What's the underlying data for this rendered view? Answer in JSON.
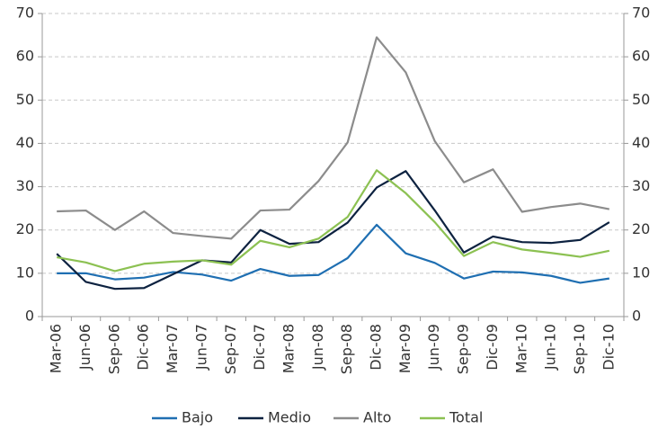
{
  "chart_data": {
    "type": "line",
    "categories": [
      "Mar-06",
      "Jun-06",
      "Sep-06",
      "Dic-06",
      "Mar-07",
      "Jun-07",
      "Sep-07",
      "Dic-07",
      "Mar-08",
      "Jun-08",
      "Sep-08",
      "Dic-08",
      "Mar-09",
      "Jun-09",
      "Sep-09",
      "Dic-09",
      "Mar-10",
      "Jun-10",
      "Sep-10",
      "Dic-10"
    ],
    "series": [
      {
        "name": "Bajo",
        "color": "#1f6fb2",
        "values": [
          10,
          10,
          8.6,
          9,
          10.3,
          9.7,
          8.3,
          11,
          9.4,
          9.6,
          13.5,
          21.2,
          14.6,
          12.4,
          8.8,
          10.4,
          10.2,
          9.4,
          7.8,
          8.8
        ]
      },
      {
        "name": "Medio",
        "color": "#0d2240",
        "values": [
          14.5,
          8,
          6.4,
          6.6,
          9.8,
          13,
          12.5,
          20,
          16.8,
          17.2,
          21.7,
          29.8,
          33.6,
          24.5,
          14.8,
          18.5,
          17.2,
          17,
          17.7,
          21.8
        ]
      },
      {
        "name": "Alto",
        "color": "#8c8c8c",
        "values": [
          24.3,
          24.5,
          20,
          24.3,
          19.3,
          18.6,
          18,
          24.5,
          24.7,
          31.3,
          40.2,
          64.5,
          56.4,
          40.5,
          31,
          34,
          24.2,
          25.3,
          26.1,
          24.8
        ]
      },
      {
        "name": "Total",
        "color": "#8cc152",
        "values": [
          13.7,
          12.5,
          10.5,
          12.2,
          12.7,
          13,
          12,
          17.5,
          16,
          18,
          23,
          33.8,
          28.5,
          21.8,
          14,
          17.2,
          15.5,
          14.7,
          13.8,
          15.2
        ]
      }
    ],
    "ylim": [
      0,
      70
    ],
    "yticks": [
      0,
      10,
      20,
      30,
      40,
      50,
      60,
      70
    ],
    "y2lim": [
      0,
      70
    ],
    "y2ticks": [
      0,
      10,
      20,
      30,
      40,
      50,
      60,
      70
    ],
    "grid": true,
    "legend": "bottom"
  }
}
